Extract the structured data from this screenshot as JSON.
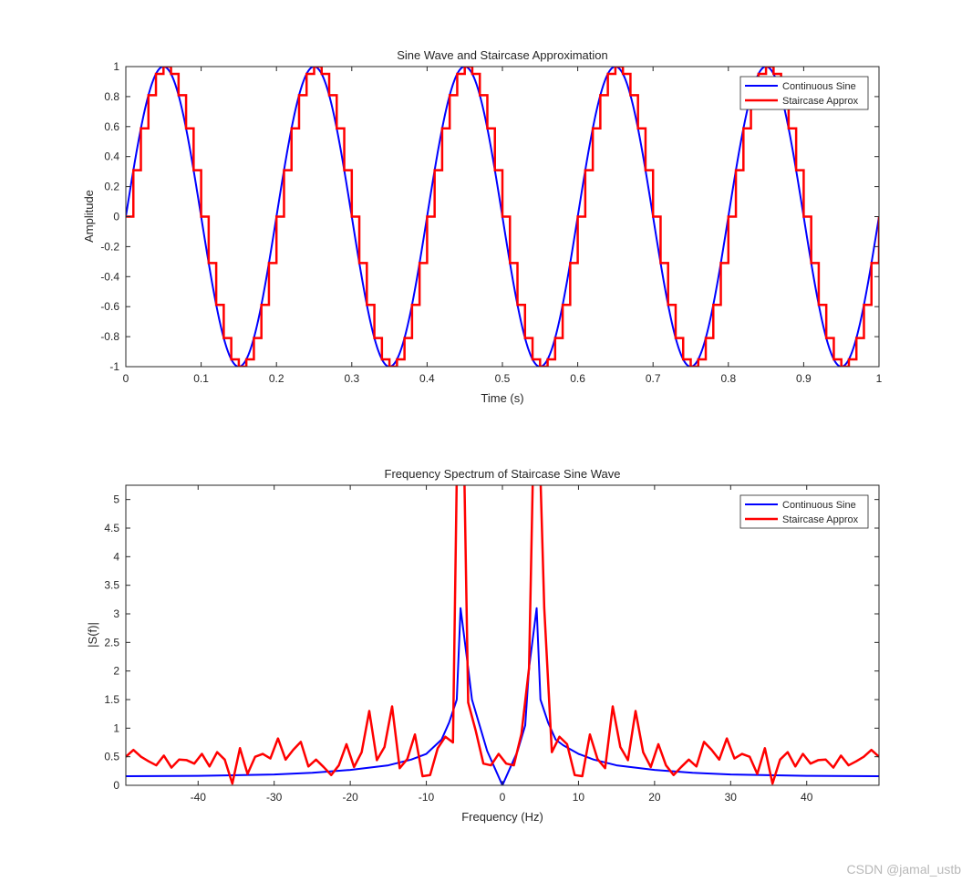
{
  "watermark": "CSDN @jamal_ustb",
  "colors": {
    "continuous": "#0000ff",
    "staircase": "#ff0000",
    "axis": "#262626"
  },
  "chart_data": [
    {
      "type": "line",
      "title": "Sine Wave and Staircase Approximation",
      "xlabel": "Time (s)",
      "ylabel": "Amplitude",
      "xlim": [
        0,
        1
      ],
      "ylim": [
        -1,
        1
      ],
      "xticks": [
        0,
        0.1,
        0.2,
        0.3,
        0.4,
        0.5,
        0.6,
        0.7,
        0.8,
        0.9,
        1
      ],
      "xtick_labels": [
        "0",
        "0.1",
        "0.2",
        "0.3",
        "0.4",
        "0.5",
        "0.6",
        "0.7",
        "0.8",
        "0.9",
        "1"
      ],
      "yticks": [
        -1,
        -0.8,
        -0.6,
        -0.4,
        -0.2,
        0,
        0.2,
        0.4,
        0.6,
        0.8,
        1
      ],
      "ytick_labels": [
        "-1",
        "-0.8",
        "-0.6",
        "-0.4",
        "-0.2",
        "0",
        "0.2",
        "0.4",
        "0.6",
        "0.8",
        "1"
      ],
      "legend": "top-right",
      "series": [
        {
          "name": "Continuous Sine",
          "color": "#0000ff",
          "function": "sin(2*pi*5*t)",
          "frequency_hz": 5
        },
        {
          "name": "Staircase Approx",
          "color": "#ff0000",
          "step_width_s": 0.01,
          "step_levels": [
            0,
            0.309,
            0.588,
            0.809,
            0.951,
            1,
            0.951,
            0.809,
            0.588,
            0.309,
            0,
            -0.309,
            -0.588,
            -0.809,
            -0.951,
            -1,
            -0.951,
            -0.809,
            -0.588,
            -0.309
          ]
        }
      ]
    },
    {
      "type": "line",
      "title": "Frequency Spectrum of Staircase Sine Wave",
      "xlabel": "Frequency (Hz)",
      "ylabel": "|S(f)|",
      "xlim": [
        -49.5,
        49.5
      ],
      "ylim": [
        0,
        5.25
      ],
      "xticks": [
        -40,
        -30,
        -20,
        -10,
        0,
        10,
        20,
        30,
        40
      ],
      "xtick_labels": [
        "-40",
        "-30",
        "-20",
        "-10",
        "0",
        "10",
        "20",
        "30",
        "40"
      ],
      "yticks": [
        0,
        0.5,
        1,
        1.5,
        2,
        2.5,
        3,
        3.5,
        4,
        4.5,
        5
      ],
      "ytick_labels": [
        "0",
        "0.5",
        "1",
        "1.5",
        "2",
        "2.5",
        "3",
        "3.5",
        "4",
        "4.5",
        "5"
      ],
      "legend": "top-right",
      "series": [
        {
          "name": "Continuous Sine",
          "color": "#0000ff",
          "points": [
            [
              -49.5,
              0.16
            ],
            [
              -40,
              0.165
            ],
            [
              -30,
              0.19
            ],
            [
              -25,
              0.22
            ],
            [
              -20,
              0.27
            ],
            [
              -15,
              0.35
            ],
            [
              -12,
              0.45
            ],
            [
              -10,
              0.55
            ],
            [
              -8,
              0.8
            ],
            [
              -7,
              1.1
            ],
            [
              -6,
              1.5
            ],
            [
              -5.5,
              3.1
            ],
            [
              -4.5,
              2.05
            ],
            [
              -4,
              1.5
            ],
            [
              -3,
              1.05
            ],
            [
              -2,
              0.6
            ],
            [
              -1,
              0.3
            ],
            [
              0,
              0
            ],
            [
              1,
              0.3
            ],
            [
              2,
              0.6
            ],
            [
              3,
              1.05
            ],
            [
              3.5,
              2.05
            ],
            [
              4.5,
              3.1
            ],
            [
              5,
              1.5
            ],
            [
              6,
              1.1
            ],
            [
              7,
              0.8
            ],
            [
              8,
              0.7
            ],
            [
              10,
              0.55
            ],
            [
              12,
              0.45
            ],
            [
              15,
              0.35
            ],
            [
              20,
              0.27
            ],
            [
              25,
              0.22
            ],
            [
              30,
              0.19
            ],
            [
              40,
              0.165
            ],
            [
              49.5,
              0.16
            ]
          ]
        },
        {
          "name": "Staircase Approx",
          "color": "#ff0000",
          "points": [
            [
              -49.5,
              0.5
            ],
            [
              -48.5,
              0.62
            ],
            [
              -47.5,
              0.5
            ],
            [
              -46.5,
              0.42
            ],
            [
              -45.5,
              0.35
            ],
            [
              -44.5,
              0.52
            ],
            [
              -43.5,
              0.31
            ],
            [
              -42.5,
              0.45
            ],
            [
              -41.5,
              0.44
            ],
            [
              -40.5,
              0.38
            ],
            [
              -39.5,
              0.55
            ],
            [
              -38.5,
              0.33
            ],
            [
              -37.5,
              0.58
            ],
            [
              -36.5,
              0.45
            ],
            [
              -35.5,
              0.03
            ],
            [
              -34.5,
              0.65
            ],
            [
              -33.5,
              0.2
            ],
            [
              -32.5,
              0.5
            ],
            [
              -31.5,
              0.55
            ],
            [
              -30.5,
              0.47
            ],
            [
              -29.5,
              0.82
            ],
            [
              -28.5,
              0.45
            ],
            [
              -27.5,
              0.62
            ],
            [
              -26.5,
              0.76
            ],
            [
              -25.5,
              0.33
            ],
            [
              -24.5,
              0.45
            ],
            [
              -23.5,
              0.32
            ],
            [
              -22.5,
              0.18
            ],
            [
              -21.5,
              0.35
            ],
            [
              -20.5,
              0.72
            ],
            [
              -19.5,
              0.32
            ],
            [
              -18.5,
              0.58
            ],
            [
              -17.5,
              1.3
            ],
            [
              -16.5,
              0.44
            ],
            [
              -15.5,
              0.67
            ],
            [
              -14.5,
              1.38
            ],
            [
              -13.5,
              0.3
            ],
            [
              -12.5,
              0.46
            ],
            [
              -11.5,
              0.89
            ],
            [
              -10.5,
              0.16
            ],
            [
              -9.5,
              0.18
            ],
            [
              -8.5,
              0.65
            ],
            [
              -7.5,
              0.85
            ],
            [
              -6.5,
              0.75
            ],
            [
              -6,
              5.4
            ],
            [
              -5,
              5.4
            ],
            [
              -4.5,
              1.45
            ],
            [
              -3.5,
              0.95
            ],
            [
              -2.5,
              0.38
            ],
            [
              -1.5,
              0.35
            ],
            [
              -0.5,
              0.55
            ],
            [
              0.5,
              0.38
            ],
            [
              1.5,
              0.35
            ],
            [
              2.5,
              0.9
            ],
            [
              3.5,
              2.05
            ],
            [
              4,
              5.4
            ],
            [
              5,
              5.4
            ],
            [
              5.5,
              3.1
            ],
            [
              6.5,
              0.58
            ],
            [
              7.5,
              0.85
            ],
            [
              8.5,
              0.72
            ],
            [
              9.5,
              0.18
            ],
            [
              10.5,
              0.16
            ],
            [
              11.5,
              0.89
            ],
            [
              12.5,
              0.46
            ],
            [
              13.5,
              0.3
            ],
            [
              14.5,
              1.38
            ],
            [
              15.5,
              0.67
            ],
            [
              16.5,
              0.44
            ],
            [
              17.5,
              1.3
            ],
            [
              18.5,
              0.58
            ],
            [
              19.5,
              0.32
            ],
            [
              20.5,
              0.72
            ],
            [
              21.5,
              0.35
            ],
            [
              22.5,
              0.18
            ],
            [
              23.5,
              0.32
            ],
            [
              24.5,
              0.45
            ],
            [
              25.5,
              0.33
            ],
            [
              26.5,
              0.76
            ],
            [
              27.5,
              0.62
            ],
            [
              28.5,
              0.45
            ],
            [
              29.5,
              0.82
            ],
            [
              30.5,
              0.47
            ],
            [
              31.5,
              0.55
            ],
            [
              32.5,
              0.5
            ],
            [
              33.5,
              0.2
            ],
            [
              34.5,
              0.65
            ],
            [
              35.5,
              0.03
            ],
            [
              36.5,
              0.45
            ],
            [
              37.5,
              0.58
            ],
            [
              38.5,
              0.33
            ],
            [
              39.5,
              0.55
            ],
            [
              40.5,
              0.38
            ],
            [
              41.5,
              0.44
            ],
            [
              42.5,
              0.45
            ],
            [
              43.5,
              0.31
            ],
            [
              44.5,
              0.52
            ],
            [
              45.5,
              0.35
            ],
            [
              46.5,
              0.42
            ],
            [
              47.5,
              0.5
            ],
            [
              48.5,
              0.62
            ],
            [
              49.5,
              0.5
            ]
          ]
        }
      ]
    }
  ]
}
